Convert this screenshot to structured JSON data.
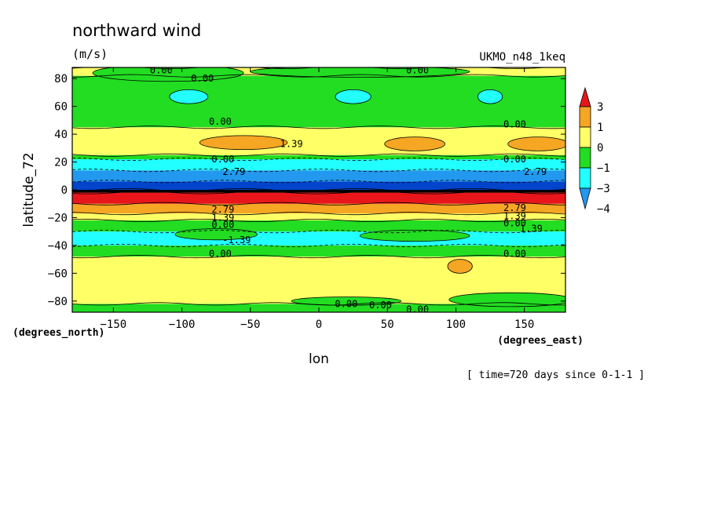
{
  "chart_data": {
    "type": "heatmap",
    "title": "northward wind",
    "units": "(m/s)",
    "dataset": "UKMO_n48_1keq",
    "xlabel": "lon",
    "ylabel": "latitude_72",
    "xunits": "(degrees_east)",
    "yunits": "(degrees_north)",
    "time_note": "[ time=720 days since 0-1-1 ]",
    "xlim": [
      -180,
      180
    ],
    "ylim": [
      -88,
      88
    ],
    "xticks": [
      -150,
      -100,
      -50,
      0,
      50,
      100,
      150
    ],
    "yticks": [
      -80,
      -60,
      -40,
      -20,
      0,
      20,
      40,
      60,
      80
    ],
    "legend": {
      "placement": "right",
      "labels": [
        "3",
        "1",
        "0",
        "-1",
        "-3",
        "-4"
      ],
      "colors": [
        "#e8161a",
        "#f5a623",
        "#ffff66",
        "#22dd22",
        "#22ffff",
        "#2299ee"
      ]
    },
    "zonal_bands": [
      {
        "lat": [
          -88,
          -82
        ],
        "color": "#22dd22"
      },
      {
        "lat": [
          -82,
          -48
        ],
        "color": "#ffff66"
      },
      {
        "lat": [
          -48,
          -40
        ],
        "color": "#22dd22"
      },
      {
        "lat": [
          -40,
          -30
        ],
        "color": "#22ffff"
      },
      {
        "lat": [
          -30,
          -22
        ],
        "color": "#22dd22"
      },
      {
        "lat": [
          -22,
          -17
        ],
        "color": "#ffff66"
      },
      {
        "lat": [
          -17,
          -10
        ],
        "color": "#f5a623"
      },
      {
        "lat": [
          -10,
          -2
        ],
        "color": "#e8161a"
      },
      {
        "lat": [
          -2,
          0
        ],
        "color": "#000000"
      },
      {
        "lat": [
          0,
          6
        ],
        "color": "#0044cc"
      },
      {
        "lat": [
          6,
          14
        ],
        "color": "#2299ee"
      },
      {
        "lat": [
          14,
          22
        ],
        "color": "#22ffff"
      },
      {
        "lat": [
          22,
          25
        ],
        "color": "#22dd22"
      },
      {
        "lat": [
          25,
          45
        ],
        "color": "#ffff66"
      },
      {
        "lat": [
          45,
          82
        ],
        "color": "#22dd22"
      },
      {
        "lat": [
          82,
          88
        ],
        "color": "#ffff66"
      }
    ],
    "blobs": [
      {
        "lon": -95,
        "lat": 67,
        "rx": 14,
        "ry": 5,
        "color": "#22ffff"
      },
      {
        "lon": 25,
        "lat": 67,
        "rx": 13,
        "ry": 5,
        "color": "#22ffff"
      },
      {
        "lon": 125,
        "lat": 67,
        "rx": 9,
        "ry": 5,
        "color": "#22ffff"
      },
      {
        "lon": -55,
        "lat": 34,
        "rx": 32,
        "ry": 5,
        "color": "#f5a623"
      },
      {
        "lon": 70,
        "lat": 33,
        "rx": 22,
        "ry": 5,
        "color": "#f5a623"
      },
      {
        "lon": 160,
        "lat": 33,
        "rx": 22,
        "ry": 5,
        "color": "#f5a623"
      },
      {
        "lon": -75,
        "lat": -32,
        "rx": 30,
        "ry": 4,
        "color": "#22dd22"
      },
      {
        "lon": 70,
        "lat": -33,
        "rx": 40,
        "ry": 4,
        "color": "#22dd22"
      },
      {
        "lon": 103,
        "lat": -55,
        "rx": 9,
        "ry": 5,
        "color": "#f5a623"
      },
      {
        "lon": 20,
        "lat": -80,
        "rx": 40,
        "ry": 3,
        "color": "#22dd22"
      },
      {
        "lon": 140,
        "lat": -79,
        "rx": 45,
        "ry": 5,
        "color": "#22dd22"
      },
      {
        "lon": -110,
        "lat": 84,
        "rx": 55,
        "ry": 6,
        "color": "#22dd22"
      },
      {
        "lon": 30,
        "lat": 85,
        "rx": 80,
        "ry": 4,
        "color": "#22dd22"
      }
    ],
    "contour_labels": [
      {
        "text": "0.00",
        "lon": -115,
        "lat": 86
      },
      {
        "text": "0.00",
        "lon": -85,
        "lat": 80
      },
      {
        "text": "0.00",
        "lon": 72,
        "lat": 86
      },
      {
        "text": "0.00",
        "lon": -72,
        "lat": 49
      },
      {
        "text": "0.00",
        "lon": 143,
        "lat": 47
      },
      {
        "text": "1.39",
        "lon": -20,
        "lat": 33
      },
      {
        "text": "0.00",
        "lon": -70,
        "lat": 22
      },
      {
        "text": "2.79",
        "lon": -62,
        "lat": 13
      },
      {
        "text": "0.00",
        "lon": 143,
        "lat": 22
      },
      {
        "text": "2.79",
        "lon": 158,
        "lat": 13
      },
      {
        "text": "2.79",
        "lon": -70,
        "lat": -14
      },
      {
        "text": "1.39",
        "lon": -70,
        "lat": -20
      },
      {
        "text": "0.00",
        "lon": -70,
        "lat": -25
      },
      {
        "text": "2.79",
        "lon": 143,
        "lat": -13
      },
      {
        "text": "1.39",
        "lon": 143,
        "lat": -19
      },
      {
        "text": "0.00",
        "lon": 143,
        "lat": -24
      },
      {
        "text": "1.39",
        "lon": 155,
        "lat": -28
      },
      {
        "text": "-1.39",
        "lon": -60,
        "lat": -36
      },
      {
        "text": "0.00",
        "lon": -72,
        "lat": -46
      },
      {
        "text": "0.00",
        "lon": 143,
        "lat": -46
      },
      {
        "text": "0.00",
        "lon": 20,
        "lat": -82
      },
      {
        "text": "0.00",
        "lon": 45,
        "lat": -83
      },
      {
        "text": "0.00",
        "lon": 72,
        "lat": -86
      }
    ]
  }
}
